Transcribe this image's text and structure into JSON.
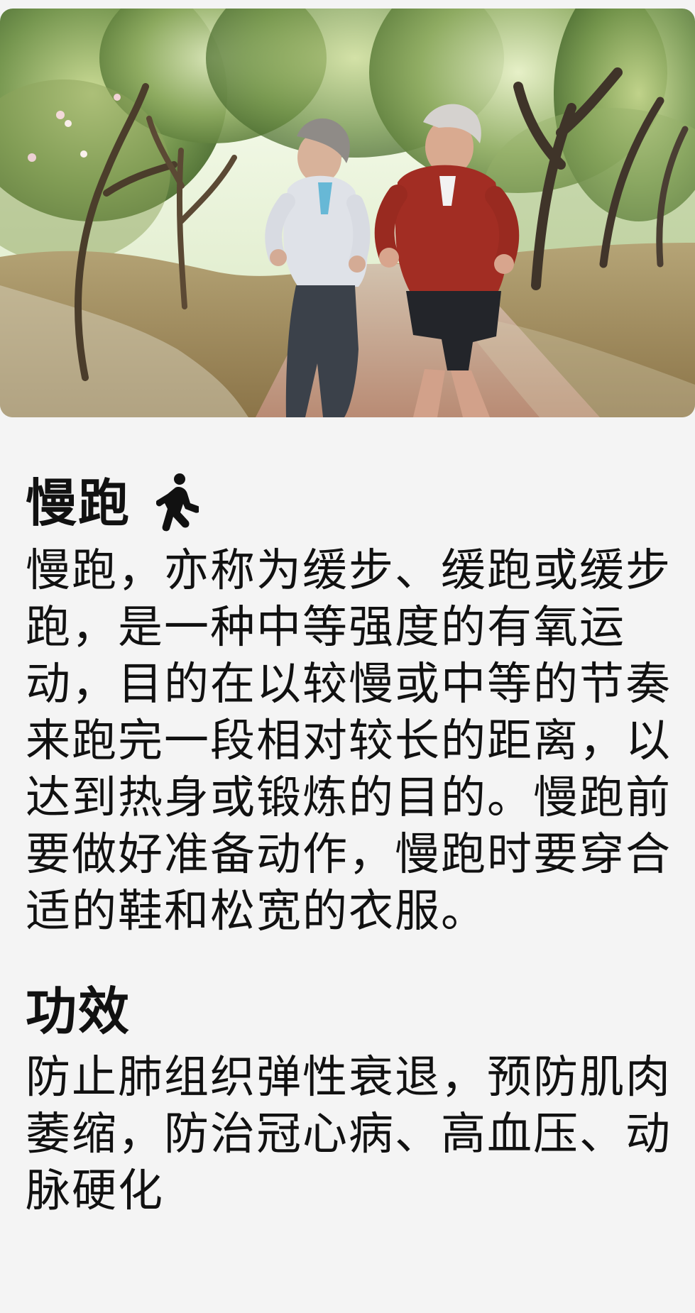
{
  "hero": {
    "image_label": "two older adults jogging outdoors"
  },
  "sections": {
    "jogging": {
      "title": "慢跑",
      "icon": "walking-person-icon",
      "description": "慢跑，亦称为缓步、缓跑或缓步跑，是一种中等强度的有氧运动，目的在以较慢或中等的节奏来跑完一段相对较长的距离，以达到热身或锻炼的目的。慢跑前要做好准备动作，慢跑时要穿合适的鞋和松宽的衣服。"
    },
    "benefits": {
      "title": "功效",
      "description": "防止肺组织弹性衰退，预防肌肉萎缩，防治冠心病、高血压、动脉硬化"
    }
  },
  "colors": {
    "background": "#f4f4f4",
    "text": "#111111",
    "icon": "#111111"
  }
}
